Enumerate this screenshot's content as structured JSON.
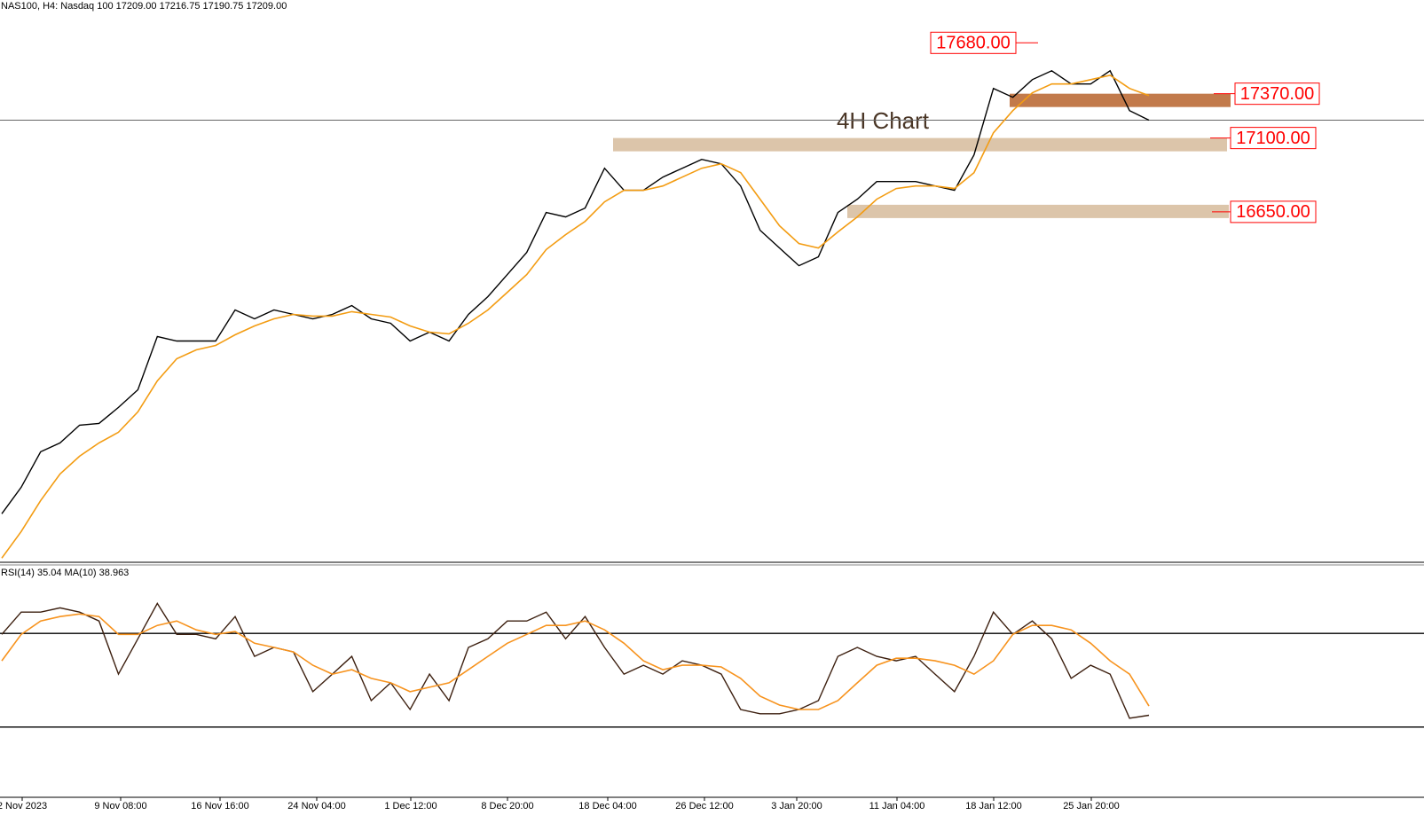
{
  "chart_data": [
    {
      "type": "line",
      "title": "NAS100, H4:  Nasdaq 100  17209.00 17216.75 17190.75 17209.00",
      "annotation": "4H Chart",
      "ylim": [
        14520,
        17860
      ],
      "series": [
        {
          "color": "#000000",
          "values": [
            14810,
            14972,
            15188,
            15242,
            15350,
            15361,
            15458,
            15566,
            15890,
            15863,
            15863,
            15863,
            16052,
            15998,
            16052,
            16025,
            15998,
            16025,
            16079,
            15998,
            15971,
            15863,
            15917,
            15863,
            16025,
            16133,
            16268,
            16403,
            16646,
            16619,
            16673,
            16916,
            16781,
            16781,
            16862,
            16916,
            16970,
            16943,
            16808,
            16538,
            16430,
            16322,
            16376,
            16646,
            16727,
            16835,
            16835,
            16835,
            16808,
            16781,
            16997,
            17402,
            17348,
            17456,
            17510,
            17429,
            17429,
            17510,
            17267,
            17209
          ]
        },
        {
          "color": "#f39c12",
          "values": [
            14540,
            14702,
            14891,
            15053,
            15161,
            15242,
            15307,
            15431,
            15620,
            15755,
            15809,
            15836,
            15901,
            15955,
            15998,
            16025,
            16015,
            16015,
            16042,
            16025,
            16009,
            15955,
            15917,
            15907,
            15971,
            16052,
            16160,
            16268,
            16420,
            16511,
            16592,
            16711,
            16781,
            16781,
            16808,
            16862,
            16916,
            16943,
            16889,
            16727,
            16565,
            16457,
            16430,
            16528,
            16619,
            16727,
            16792,
            16808,
            16808,
            16792,
            16889,
            17132,
            17267,
            17375,
            17429,
            17429,
            17456,
            17483,
            17402,
            17359
          ]
        }
      ],
      "levels": [
        {
          "value": 17680,
          "label": "17680.00"
        },
        {
          "value": 17370,
          "label": "17370.00",
          "zone_color": "#c27a4b"
        },
        {
          "value": 17100,
          "label": "17100.00",
          "zone_color": "#dcc5aa"
        },
        {
          "value": 16650,
          "label": "16650.00",
          "zone_color": "#dcc5aa"
        }
      ],
      "label_color": "#ff0000"
    },
    {
      "type": "line",
      "title": "RSI(14) 35.04 MA(10) 38.963",
      "ylim": [
        0,
        100
      ],
      "levels": [
        30,
        70
      ],
      "series": [
        {
          "color": "#3d2010",
          "values": [
            69.6,
            79.1,
            79.1,
            80.9,
            79.1,
            75.3,
            52.6,
            67.7,
            82.8,
            69.6,
            69.6,
            67.7,
            77.2,
            60.2,
            64.0,
            62.1,
            45.1,
            52.6,
            60.2,
            41.3,
            48.9,
            37.5,
            52.6,
            41.3,
            64.0,
            67.7,
            75.3,
            75.3,
            79.1,
            67.7,
            77.2,
            64.0,
            52.6,
            56.4,
            52.6,
            58.3,
            56.4,
            52.6,
            37.5,
            35.7,
            35.7,
            37.5,
            41.3,
            60.2,
            64.0,
            60.2,
            58.3,
            60.2,
            52.6,
            45.1,
            60.2,
            79.1,
            69.6,
            75.3,
            67.7,
            50.8,
            56.4,
            52.6,
            33.8,
            35.04
          ]
        },
        {
          "color": "#f7931e",
          "values": [
            58.3,
            69.6,
            75.3,
            77.2,
            78.3,
            77.2,
            69.6,
            69.6,
            73.4,
            75.3,
            71.5,
            69.6,
            70.8,
            65.8,
            64.0,
            62.1,
            56.4,
            52.6,
            54.5,
            50.8,
            48.9,
            45.1,
            47.0,
            48.9,
            54.5,
            60.2,
            65.8,
            69.6,
            73.4,
            73.4,
            75.3,
            71.5,
            65.8,
            58.3,
            54.5,
            56.4,
            56.4,
            55.7,
            50.8,
            43.2,
            39.4,
            37.5,
            37.5,
            41.3,
            48.9,
            56.4,
            59.4,
            59.4,
            58.3,
            56.4,
            52.6,
            58.3,
            69.6,
            73.4,
            73.4,
            71.5,
            65.8,
            58.3,
            52.6,
            38.963
          ]
        }
      ],
      "time_labels": [
        "2 Nov 2023",
        "9 Nov 08:00",
        "16 Nov 16:00",
        "24 Nov 04:00",
        "1 Dec 12:00",
        "8 Dec 20:00",
        "18 Dec 04:00",
        "26 Dec 12:00",
        "3 Jan 20:00",
        "11 Jan 04:00",
        "18 Jan 12:00",
        "25 Jan 20:00"
      ]
    }
  ]
}
